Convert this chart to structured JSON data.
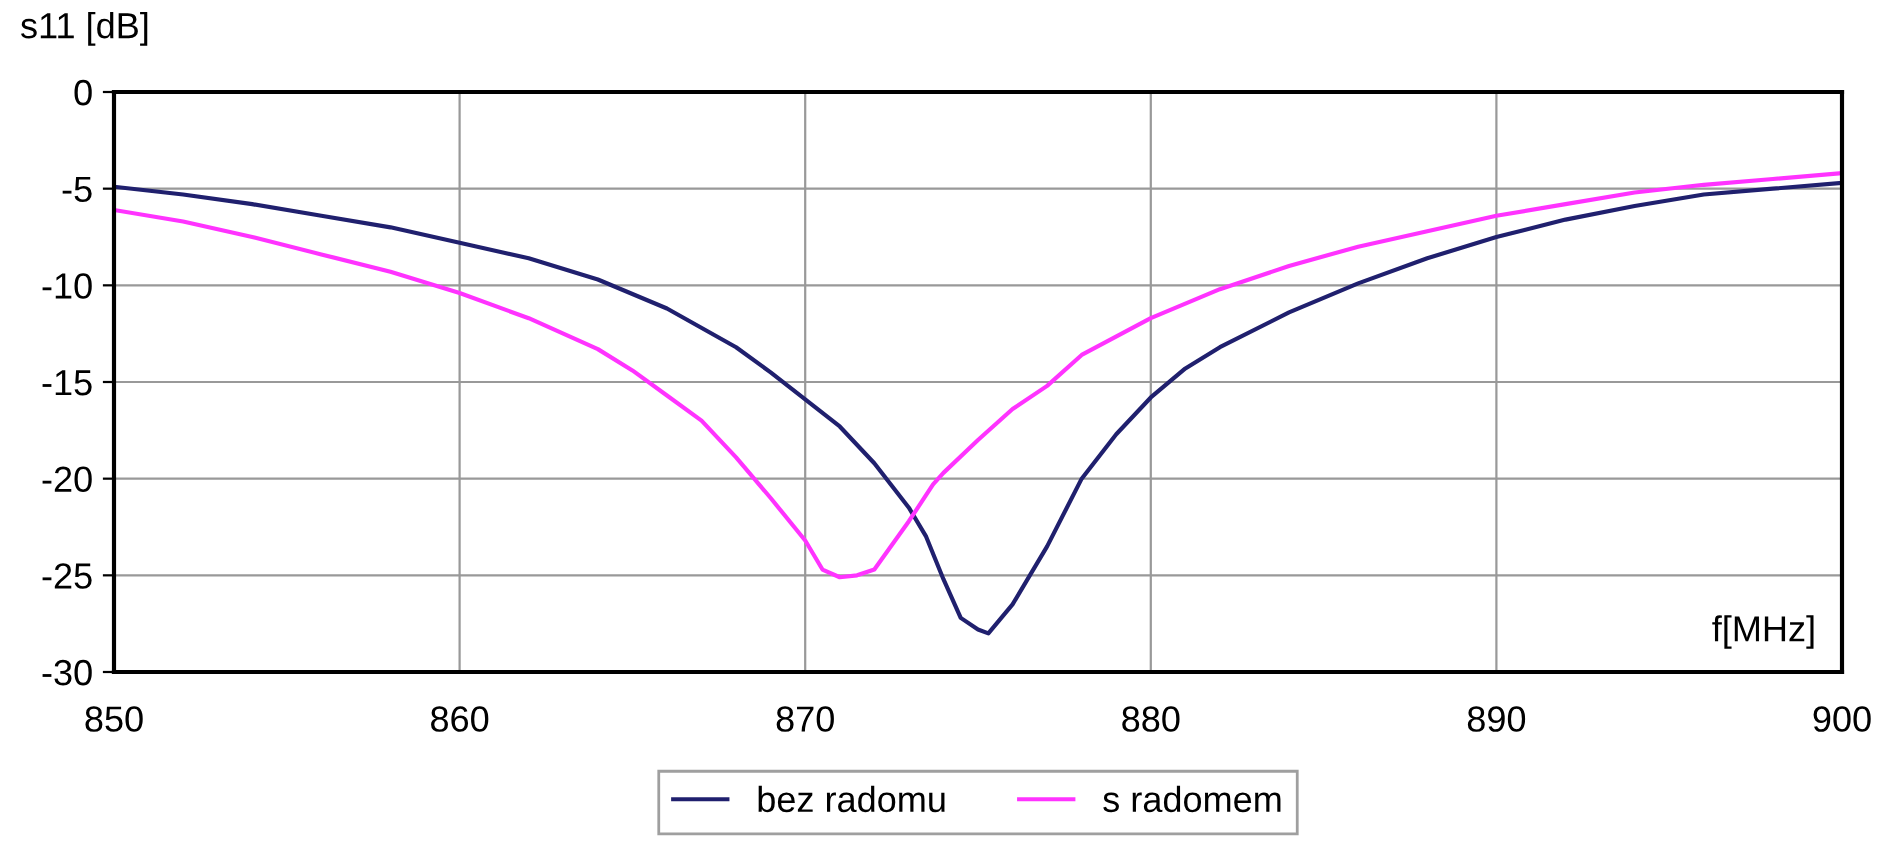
{
  "chart_data": {
    "type": "line",
    "xlabel": "f[MHz]",
    "ylabel": "s11 [dB]",
    "xlim": [
      850,
      900
    ],
    "xticks": [
      850,
      860,
      870,
      880,
      890,
      900
    ],
    "ylim": [
      -30,
      0
    ],
    "yticks": [
      -30,
      -25,
      -20,
      -15,
      -10,
      -5,
      0
    ],
    "grid": true,
    "legend": "bottom",
    "marker": "none",
    "line_style": "solid",
    "series": [
      {
        "name": "bez radomu",
        "color": "#20206e",
        "x": [
          850,
          852,
          854,
          856,
          858,
          860,
          862,
          864,
          866,
          868,
          869,
          870,
          871,
          872,
          873,
          873.5,
          874,
          874.5,
          875,
          875.3,
          876,
          877,
          878,
          879,
          880,
          881,
          882,
          884,
          886,
          888,
          890,
          892,
          894,
          896,
          898,
          900
        ],
        "values": [
          -4.9,
          -5.3,
          -5.8,
          -6.4,
          -7.0,
          -7.8,
          -8.6,
          -9.7,
          -11.2,
          -13.2,
          -14.5,
          -15.9,
          -17.3,
          -19.2,
          -21.5,
          -23.0,
          -25.2,
          -27.2,
          -27.8,
          -28.0,
          -26.5,
          -23.5,
          -20.0,
          -17.7,
          -15.8,
          -14.3,
          -13.2,
          -11.4,
          -9.9,
          -8.6,
          -7.5,
          -6.6,
          -5.9,
          -5.3,
          -5.0,
          -4.7
        ]
      },
      {
        "name": "s radomem",
        "color": "#ff33ff",
        "x": [
          850,
          852,
          854,
          856,
          858,
          860,
          862,
          864,
          865,
          866,
          867,
          868,
          869,
          870,
          870.5,
          871,
          871.5,
          872,
          873,
          873.7,
          874,
          875,
          876,
          877,
          878,
          880,
          882,
          884,
          886,
          888,
          890,
          892,
          894,
          896,
          898,
          900
        ],
        "values": [
          -6.1,
          -6.7,
          -7.5,
          -8.4,
          -9.3,
          -10.4,
          -11.7,
          -13.3,
          -14.4,
          -15.7,
          -17.0,
          -18.9,
          -21.0,
          -23.2,
          -24.7,
          -25.1,
          -25.0,
          -24.7,
          -22.2,
          -20.3,
          -19.7,
          -18.0,
          -16.4,
          -15.2,
          -13.6,
          -11.7,
          -10.2,
          -9.0,
          -8.0,
          -7.2,
          -6.4,
          -5.8,
          -5.2,
          -4.8,
          -4.5,
          -4.2
        ]
      }
    ]
  }
}
